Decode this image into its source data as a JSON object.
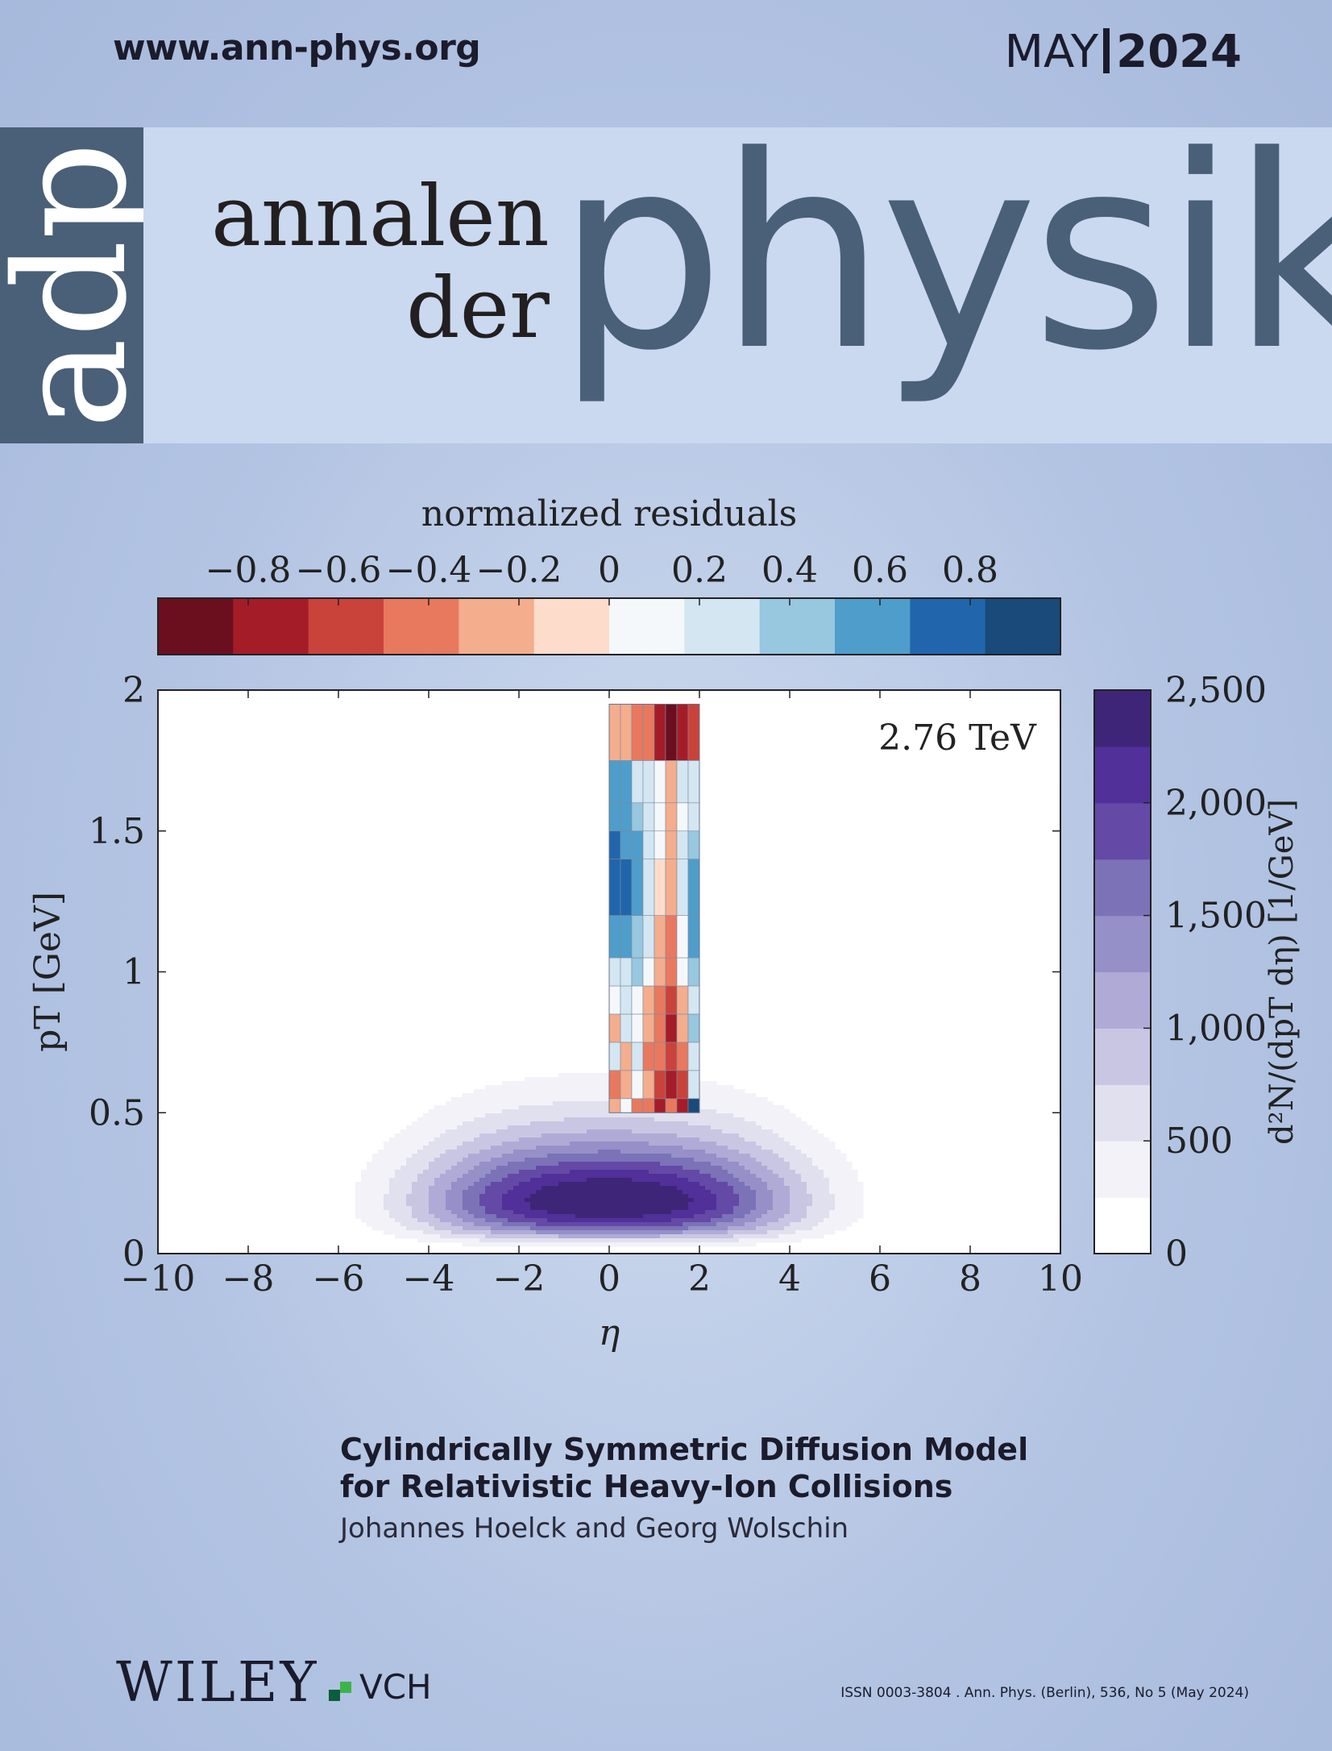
{
  "header": {
    "url": "www.ann-phys.org",
    "month": "MAY",
    "year": "2024"
  },
  "masthead": {
    "logo": "adp",
    "line1": "annalen",
    "line2": "der",
    "title": "physik"
  },
  "chart_data": [
    {
      "type": "colorbar",
      "title": "normalized residuals",
      "ticks": [
        "−0.8",
        "−0.6",
        "−0.4",
        "−0.2",
        "0",
        "0.2",
        "0.4",
        "0.6",
        "0.8"
      ],
      "tick_values": [
        -0.8,
        -0.6,
        -0.4,
        -0.2,
        0,
        0.2,
        0.4,
        0.6,
        0.8
      ],
      "range": [
        -1,
        1
      ],
      "colors": [
        "#6b0f1f",
        "#a51c29",
        "#c9433b",
        "#e8795e",
        "#f4ad8d",
        "#fddccb",
        "#f4f8fb",
        "#d3e6f2",
        "#98c7e0",
        "#4f9dcb",
        "#2166ac",
        "#194a7a"
      ]
    },
    {
      "type": "heatmap",
      "annotation": "2.76 TeV",
      "xlabel": "η",
      "ylabel": "pT [GeV]",
      "xlim": [
        -10,
        10
      ],
      "ylim": [
        0,
        2
      ],
      "xticks": [
        "−10",
        "−8",
        "−6",
        "−4",
        "−2",
        "0",
        "2",
        "4",
        "6",
        "8",
        "10"
      ],
      "yticks": [
        "0",
        "0.5",
        "1",
        "1.5",
        "2"
      ],
      "contour_levels": [
        250,
        500,
        750,
        1000,
        1250,
        1500,
        1750,
        2000,
        2250
      ],
      "peaks": [
        {
          "eta": -1.9,
          "pt": 0.23
        },
        {
          "eta": 1.9,
          "pt": 0.23
        }
      ],
      "residual_columns_eta": [
        0,
        0.25,
        0.5,
        0.75,
        1,
        1.25,
        1.5,
        1.75,
        2
      ],
      "residual_rows_pt": [
        0.5,
        0.55,
        0.65,
        0.75,
        0.85,
        0.95,
        1.05,
        1.2,
        1.4,
        1.5,
        1.6,
        1.75,
        1.95
      ],
      "residuals": [
        [
          -0.3,
          0.1,
          -0.5,
          -0.4,
          -0.7,
          -0.5,
          -0.8,
          0.9
        ],
        [
          -0.4,
          -0.2,
          0.1,
          -0.3,
          -0.6,
          -0.7,
          -0.6,
          0.2
        ],
        [
          0.2,
          -0.3,
          0.2,
          -0.4,
          -0.5,
          -0.6,
          -0.5,
          0.3
        ],
        [
          -0.2,
          0.3,
          0.1,
          -0.2,
          -0.4,
          -0.7,
          -0.3,
          0.4
        ],
        [
          0.1,
          0.2,
          0.0,
          -0.3,
          -0.5,
          -0.6,
          -0.2,
          0.3
        ],
        [
          0.3,
          0.2,
          0.4,
          0.1,
          -0.3,
          -0.4,
          0.0,
          0.4
        ],
        [
          0.6,
          0.5,
          0.4,
          0.2,
          -0.2,
          -0.4,
          0.1,
          0.5
        ],
        [
          0.7,
          0.8,
          0.5,
          0.3,
          -0.1,
          -0.2,
          0.2,
          0.5
        ],
        [
          0.8,
          0.6,
          0.5,
          0.2,
          0.1,
          -0.3,
          0.2,
          0.4
        ],
        [
          0.6,
          0.5,
          0.4,
          0.3,
          0.0,
          -0.2,
          0.1,
          0.3
        ],
        [
          0.5,
          0.6,
          0.3,
          0.2,
          0.1,
          -0.3,
          0.2,
          0.2
        ],
        [
          -0.2,
          -0.3,
          -0.4,
          -0.5,
          -0.8,
          -0.9,
          -0.7,
          -0.6
        ],
        [
          -0.2,
          -0.3,
          -0.4,
          -0.5,
          -0.8,
          -0.9,
          -0.7,
          -0.6
        ]
      ]
    },
    {
      "type": "colorbar",
      "label": "d²N/(dpT dη) [1/GeV]",
      "ticks": [
        "0",
        "500",
        "1,000",
        "1,500",
        "2,000",
        "2,500"
      ],
      "tick_values": [
        0,
        500,
        1000,
        1500,
        2000,
        2500
      ],
      "range": [
        0,
        2500
      ],
      "colors": [
        "#ffffff",
        "#f3f2f8",
        "#e1e0ef",
        "#c9c6e3",
        "#b0abd6",
        "#9590c8",
        "#7b72b8",
        "#6449a6",
        "#51309a",
        "#3f2578"
      ]
    }
  ],
  "article": {
    "title_line1": "Cylindrically Symmetric Diffusion Model",
    "title_line2": "for Relativistic Heavy-Ion Collisions",
    "authors": "Johannes Hoelck and Georg Wolschin"
  },
  "footer": {
    "publisher": "WILEY",
    "imprint": "VCH",
    "issn": "ISSN 0003-3804 . Ann. Phys. (Berlin), 536, No 5 (May 2024)"
  }
}
